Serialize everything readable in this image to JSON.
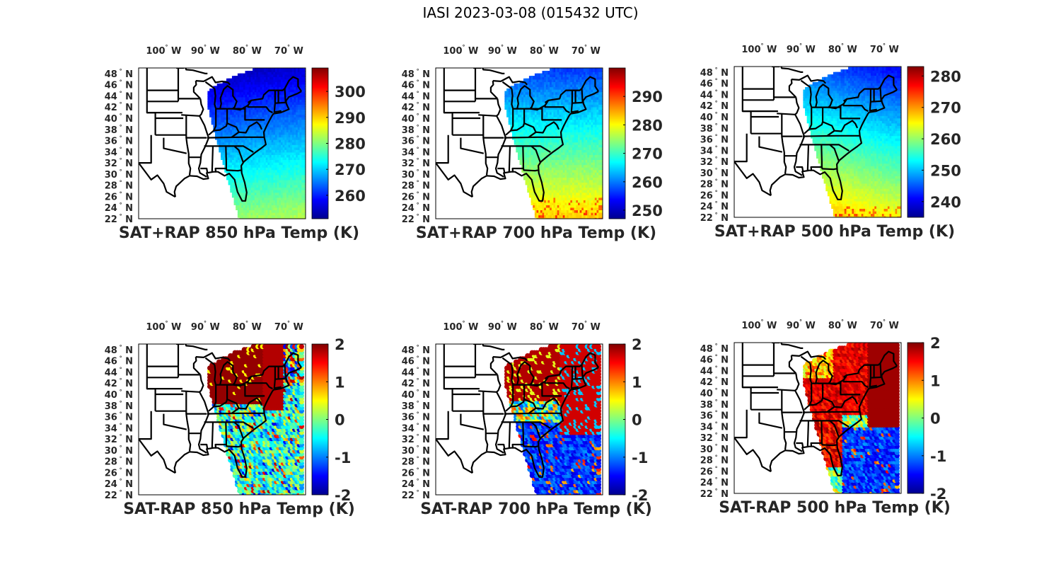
{
  "figure_title": "IASI 2023-03-08 (015432 UTC)",
  "colors": {
    "jet": [
      "#00008f",
      "#0000ff",
      "#0080ff",
      "#00ffff",
      "#80ff80",
      "#ffff00",
      "#ff8000",
      "#ff0000",
      "#800000"
    ],
    "coastline": "#000000",
    "text": "#262626"
  },
  "chart_data": [
    {
      "type": "heatmap",
      "panel": "top-left",
      "title": "SAT+RAP 850 hPa Temp (K)",
      "x_ticks": [
        "100° W",
        "90° W",
        "80° W",
        "70° W"
      ],
      "y_ticks": [
        "48° N",
        "46° N",
        "44° N",
        "42° N",
        "40° N",
        "38° N",
        "36° N",
        "34° N",
        "32° N",
        "30° N",
        "28° N",
        "26° N",
        "24° N",
        "22° N"
      ],
      "lon_range": [
        -106,
        -66
      ],
      "lat_range": [
        22,
        49
      ],
      "colorbar": {
        "label_values": [
          300,
          290,
          280,
          270,
          260
        ],
        "range": [
          251,
          309
        ],
        "colormap": "jet"
      },
      "field_summary": "Swath over eastern US & Atlantic; ~255-265 K over Great Lakes/Northeast, increasing to ~280-285 K over Florida/Gulf"
    },
    {
      "type": "heatmap",
      "panel": "top-middle",
      "title": "SAT+RAP 700 hPa Temp (K)",
      "x_ticks": [
        "100° W",
        "90° W",
        "80° W",
        "70° W"
      ],
      "y_ticks": [
        "48° N",
        "46° N",
        "44° N",
        "42° N",
        "40° N",
        "38° N",
        "36° N",
        "34° N",
        "32° N",
        "30° N",
        "28° N",
        "26° N",
        "24° N",
        "22° N"
      ],
      "lon_range": [
        -106,
        -66
      ],
      "lat_range": [
        22,
        49
      ],
      "colorbar": {
        "label_values": [
          290,
          280,
          270,
          260,
          250
        ],
        "range": [
          247,
          300
        ],
        "colormap": "jet"
      },
      "field_summary": "~255-262 K over Great Lakes/Northeast, increasing to ~278-285 K south of Florida"
    },
    {
      "type": "heatmap",
      "panel": "top-right",
      "title": "SAT+RAP 500 hPa Temp (K)",
      "x_ticks": [
        "100° W",
        "90° W",
        "80° W",
        "70° W"
      ],
      "y_ticks": [
        "48° N",
        "46° N",
        "44° N",
        "42° N",
        "40° N",
        "38° N",
        "36° N",
        "34° N",
        "32° N",
        "30° N",
        "28° N",
        "26° N",
        "24° N",
        "22° N"
      ],
      "lon_range": [
        -106,
        -66
      ],
      "lat_range": [
        22,
        49
      ],
      "colorbar": {
        "label_values": [
          280,
          270,
          260,
          250,
          240
        ],
        "range": [
          235,
          283
        ],
        "colormap": "jet"
      },
      "field_summary": "~240-245 K over Great Lakes/Northeast, increasing to ~262-268 K near southern tip of Florida"
    },
    {
      "type": "heatmap",
      "panel": "bottom-left",
      "title": "SAT-RAP 850 hPa Temp (K)",
      "x_ticks": [
        "100° W",
        "90° W",
        "80° W",
        "70° W"
      ],
      "y_ticks": [
        "48° N",
        "46° N",
        "44° N",
        "42° N",
        "40° N",
        "38° N",
        "36° N",
        "34° N",
        "32° N",
        "30° N",
        "28° N",
        "26° N",
        "24° N",
        "22° N"
      ],
      "lon_range": [
        -106,
        -66
      ],
      "lat_range": [
        22,
        49
      ],
      "colorbar": {
        "label_values": [
          2,
          1,
          0,
          -1,
          -2
        ],
        "range": [
          -2,
          2
        ],
        "colormap": "jet"
      },
      "field_summary": "Strong positive (>2 K) over Great Lakes/Ohio Valley; mixed -1 to 0.5 K over Southeast and Atlantic"
    },
    {
      "type": "heatmap",
      "panel": "bottom-middle",
      "title": "SAT-RAP 700 hPa Temp (K)",
      "x_ticks": [
        "100° W",
        "90° W",
        "80° W",
        "70° W"
      ],
      "y_ticks": [
        "48° N",
        "46° N",
        "44° N",
        "42° N",
        "40° N",
        "38° N",
        "36° N",
        "34° N",
        "32° N",
        "30° N",
        "28° N",
        "26° N",
        "24° N",
        "22° N"
      ],
      "lon_range": [
        -106,
        -66
      ],
      "lat_range": [
        22,
        49
      ],
      "colorbar": {
        "label_values": [
          2,
          1,
          0,
          -1,
          -2
        ],
        "range": [
          -2,
          2
        ],
        "colormap": "jet"
      },
      "field_summary": "Positive (>2 K) over Great Lakes & offshore mid-Atlantic; negative (~-2 K) over Southeast/Florida Atlantic"
    },
    {
      "type": "heatmap",
      "panel": "bottom-right",
      "title": "SAT-RAP 500 hPa Temp (K)",
      "x_ticks": [
        "100° W",
        "90° W",
        "80° W",
        "70° W"
      ],
      "y_ticks": [
        "48° N",
        "46° N",
        "44° N",
        "42° N",
        "40° N",
        "38° N",
        "36° N",
        "34° N",
        "32° N",
        "30° N",
        "28° N",
        "26° N",
        "24° N",
        "22° N"
      ],
      "lon_range": [
        -106,
        -66
      ],
      "lat_range": [
        22,
        49
      ],
      "colorbar": {
        "label_values": [
          2,
          1,
          0,
          -1,
          -2
        ],
        "range": [
          -2,
          2
        ],
        "colormap": "jet"
      },
      "field_summary": "Positive (1-2+ K) over Northeast/mid-Atlantic and eastern Southeast; negative (~-2 K) offshore south of 34°N"
    }
  ]
}
